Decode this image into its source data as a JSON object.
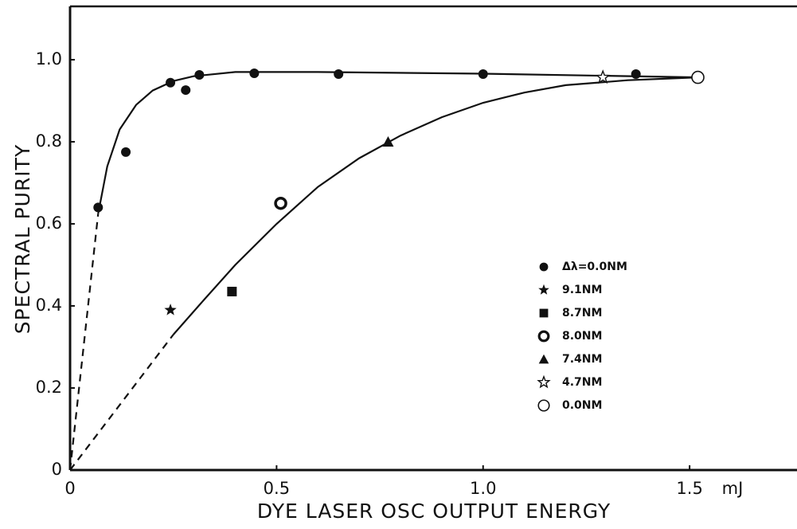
{
  "chart_data": {
    "type": "scatter",
    "x_label": "DYE LASER OSC OUTPUT ENERGY",
    "y_label": "SPECTRAL PURITY",
    "x_unit": "mJ",
    "xlim": [
      0,
      1.76
    ],
    "ylim": [
      0,
      1.13
    ],
    "xticks": [
      0,
      0.5,
      {
        "value": 1,
        "label": "1.0"
      },
      1.5
    ],
    "yticks": [
      0,
      0.2,
      0.4,
      0.6,
      0.8,
      {
        "value": 1,
        "label": "1.0"
      }
    ],
    "series": [
      {
        "name": "Δλ=0.0NM",
        "marker": "circle-filled",
        "color": "#111111",
        "x": [
          0.068,
          0.135,
          0.243,
          0.28,
          0.313,
          0.446,
          0.65,
          1.0,
          1.37
        ],
        "values": [
          0.64,
          0.775,
          0.944,
          0.926,
          0.963,
          0.967,
          0.965,
          0.965,
          0.965
        ]
      },
      {
        "name": "9.1NM",
        "marker": "star-filled",
        "color": "#111111",
        "x": [
          0.243
        ],
        "values": [
          0.39
        ]
      },
      {
        "name": "8.7NM",
        "marker": "square",
        "color": "#111111",
        "x": [
          0.392
        ],
        "values": [
          0.435
        ]
      },
      {
        "name": "8.0NM",
        "marker": "bullseye",
        "color": "#111111",
        "x": [
          0.51
        ],
        "values": [
          0.65
        ]
      },
      {
        "name": "7.4NM",
        "marker": "triangle",
        "color": "#111111",
        "x": [
          0.77
        ],
        "values": [
          0.8
        ]
      },
      {
        "name": "4.7NM",
        "marker": "star-open",
        "color": "#111111",
        "x": [
          1.29
        ],
        "values": [
          0.957
        ]
      },
      {
        "name": "0.0NM",
        "marker": "circle-open",
        "color": "#111111",
        "x": [
          1.52
        ],
        "values": [
          0.957
        ]
      }
    ],
    "curves": [
      {
        "style": "dashed",
        "x": [
          0,
          0.068
        ],
        "y": [
          0,
          0.625
        ]
      },
      {
        "style": "solid",
        "x": [
          0.068,
          0.09,
          0.12,
          0.16,
          0.2,
          0.25,
          0.3,
          0.4,
          0.6,
          1.0,
          1.52
        ],
        "y": [
          0.625,
          0.74,
          0.83,
          0.89,
          0.925,
          0.948,
          0.96,
          0.97,
          0.97,
          0.966,
          0.957
        ]
      },
      {
        "style": "dashed",
        "x": [
          0,
          0.25
        ],
        "y": [
          0,
          0.33
        ]
      },
      {
        "style": "solid",
        "x": [
          0.25,
          0.32,
          0.4,
          0.5,
          0.6,
          0.7,
          0.8,
          0.9,
          1.0,
          1.1,
          1.2,
          1.35,
          1.52
        ],
        "y": [
          0.33,
          0.41,
          0.5,
          0.6,
          0.69,
          0.76,
          0.815,
          0.86,
          0.895,
          0.92,
          0.938,
          0.95,
          0.957
        ]
      }
    ]
  }
}
